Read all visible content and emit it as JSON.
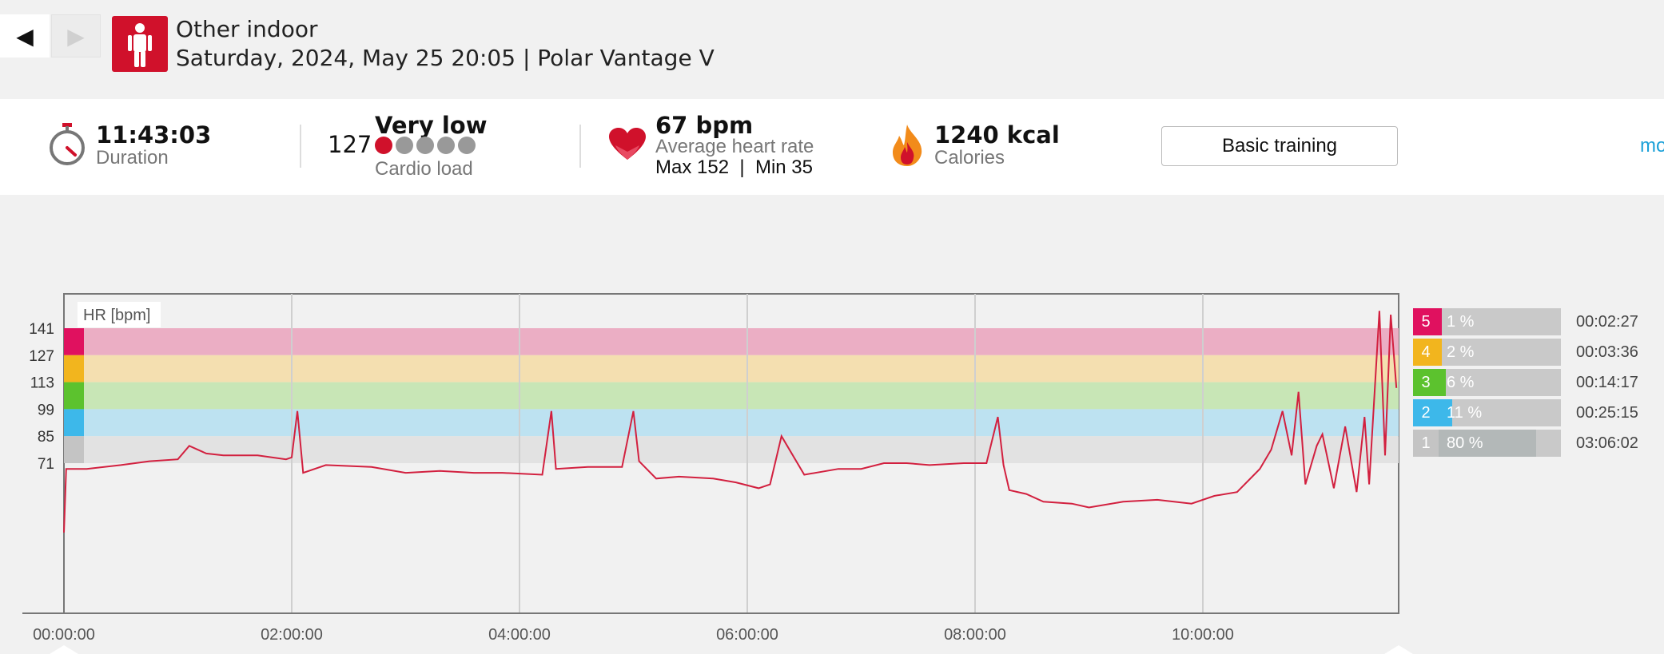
{
  "header": {
    "back_label": "◀",
    "forward_label": "▶",
    "sport": "Other indoor",
    "meta": "Saturday, 2024, May 25 20:05 | Polar Vantage V"
  },
  "summary": {
    "duration": {
      "value": "11:43:03",
      "label": "Duration",
      "icon": "stopwatch-icon"
    },
    "cardio_load": {
      "value": "127",
      "status": "Very low",
      "label": "Cardio load",
      "level": 1,
      "max_level": 5
    },
    "heart_rate": {
      "value": "67 bpm",
      "label": "Average heart rate",
      "max_min": "Max 152  |  Min 35",
      "icon": "heart-icon"
    },
    "calories": {
      "value": "1240 kcal",
      "label": "Calories",
      "icon": "flame-icon"
    },
    "benefit_button": "Basic training",
    "more_link": "mo"
  },
  "colors": {
    "accent_red": "#d0112b",
    "zone5": "#e0115f",
    "zone4": "#f2b51e",
    "zone3": "#5cc22e",
    "zone2": "#3db8ea",
    "zone1": "#c4c4c4",
    "hr_line": "#d2203f"
  },
  "chart_data": {
    "type": "line",
    "legend_label": "HR [bpm]",
    "x_ticks": [
      "00:00:00",
      "02:00:00",
      "04:00:00",
      "06:00:00",
      "08:00:00",
      "10:00:00"
    ],
    "y_ticks": [
      141,
      127,
      113,
      99,
      85,
      71
    ],
    "zones": [
      {
        "zone": "5",
        "from": 127,
        "to": 141,
        "percent": "1 %",
        "time": "00:02:27",
        "share": 0.01
      },
      {
        "zone": "4",
        "from": 113,
        "to": 127,
        "percent": "2 %",
        "time": "00:03:36",
        "share": 0.02
      },
      {
        "zone": "3",
        "from": 99,
        "to": 113,
        "percent": "6 %",
        "time": "00:14:17",
        "share": 0.06
      },
      {
        "zone": "2",
        "from": 85,
        "to": 99,
        "percent": "11 %",
        "time": "00:25:15",
        "share": 0.11
      },
      {
        "zone": "1",
        "from": 71,
        "to": 85,
        "percent": "80 %",
        "time": "03:06:02",
        "share": 0.8
      }
    ],
    "series": [
      {
        "name": "HR [bpm]",
        "x_hours": [
          0.0,
          0.02,
          0.2,
          0.5,
          0.75,
          1.0,
          1.1,
          1.25,
          1.4,
          1.7,
          1.95,
          2.0,
          2.05,
          2.1,
          2.3,
          2.7,
          3.0,
          3.3,
          3.6,
          3.85,
          4.2,
          4.28,
          4.32,
          4.6,
          4.9,
          5.0,
          5.05,
          5.2,
          5.4,
          5.7,
          5.9,
          6.1,
          6.2,
          6.3,
          6.5,
          6.8,
          7.0,
          7.2,
          7.4,
          7.6,
          7.9,
          8.1,
          8.2,
          8.25,
          8.3,
          8.45,
          8.6,
          8.85,
          9.0,
          9.3,
          9.6,
          9.9,
          10.1,
          10.3,
          10.5,
          10.6,
          10.7,
          10.78,
          10.84,
          10.9,
          11.0,
          11.05,
          11.15,
          11.25,
          11.35,
          11.42,
          11.46,
          11.5,
          11.55,
          11.6,
          11.65,
          11.7
        ],
        "y_bpm": [
          35,
          68,
          68,
          70,
          72,
          73,
          80,
          76,
          75,
          75,
          73,
          74,
          98,
          66,
          70,
          69,
          66,
          67,
          66,
          66,
          65,
          98,
          68,
          69,
          69,
          98,
          72,
          63,
          64,
          63,
          61,
          58,
          60,
          85,
          65,
          68,
          68,
          71,
          71,
          70,
          71,
          71,
          95,
          70,
          57,
          55,
          51,
          50,
          48,
          51,
          52,
          50,
          54,
          56,
          68,
          78,
          98,
          75,
          108,
          60,
          80,
          86,
          58,
          90,
          56,
          95,
          60,
          100,
          150,
          75,
          148,
          110
        ]
      }
    ],
    "ylim": [
      35,
      152
    ],
    "xlim_hours": [
      0,
      11.72
    ]
  }
}
